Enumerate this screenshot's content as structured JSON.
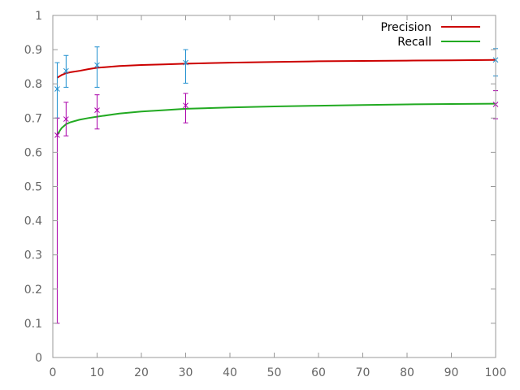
{
  "chart_data": {
    "type": "line",
    "title": "",
    "xlabel": "",
    "ylabel": "",
    "xlim": [
      0,
      100
    ],
    "ylim": [
      0,
      1
    ],
    "x_ticks": [
      "0",
      "10",
      "20",
      "30",
      "40",
      "50",
      "60",
      "70",
      "80",
      "90",
      "100"
    ],
    "y_ticks": [
      "0",
      "0.1",
      "0.2",
      "0.3",
      "0.4",
      "0.5",
      "0.6",
      "0.7",
      "0.8",
      "0.9",
      "1"
    ],
    "grid": false,
    "legend_position": "top-right",
    "series": [
      {
        "name": "Precision",
        "color": "#cc0000",
        "curve": [
          [
            1,
            0.818
          ],
          [
            2,
            0.826
          ],
          [
            3,
            0.831
          ],
          [
            4,
            0.834
          ],
          [
            6,
            0.838
          ],
          [
            8,
            0.843
          ],
          [
            10,
            0.847
          ],
          [
            15,
            0.852
          ],
          [
            20,
            0.855
          ],
          [
            25,
            0.857
          ],
          [
            30,
            0.859
          ],
          [
            40,
            0.862
          ],
          [
            50,
            0.864
          ],
          [
            60,
            0.866
          ],
          [
            70,
            0.867
          ],
          [
            80,
            0.868
          ],
          [
            90,
            0.869
          ],
          [
            100,
            0.87
          ]
        ],
        "points": [
          {
            "x": 1,
            "y": 0.785,
            "low": 0.7,
            "high": 0.862
          },
          {
            "x": 3,
            "y": 0.838,
            "low": 0.79,
            "high": 0.883
          },
          {
            "x": 10,
            "y": 0.855,
            "low": 0.79,
            "high": 0.908
          },
          {
            "x": 30,
            "y": 0.862,
            "low": 0.802,
            "high": 0.9
          },
          {
            "x": 100,
            "y": 0.87,
            "low": 0.823,
            "high": 0.903
          }
        ],
        "errorbar_color": "#1f8fcf"
      },
      {
        "name": "Recall",
        "color": "#22aa22",
        "curve": [
          [
            1,
            0.652
          ],
          [
            2,
            0.671
          ],
          [
            3,
            0.682
          ],
          [
            4,
            0.688
          ],
          [
            6,
            0.695
          ],
          [
            8,
            0.7
          ],
          [
            10,
            0.704
          ],
          [
            15,
            0.713
          ],
          [
            20,
            0.719
          ],
          [
            25,
            0.723
          ],
          [
            30,
            0.727
          ],
          [
            40,
            0.731
          ],
          [
            50,
            0.734
          ],
          [
            60,
            0.736
          ],
          [
            70,
            0.738
          ],
          [
            80,
            0.74
          ],
          [
            90,
            0.741
          ],
          [
            100,
            0.742
          ]
        ],
        "points": [
          {
            "x": 1,
            "y": 0.65,
            "low": 0.1,
            "high": 0.7
          },
          {
            "x": 3,
            "y": 0.697,
            "low": 0.648,
            "high": 0.746
          },
          {
            "x": 10,
            "y": 0.723,
            "low": 0.668,
            "high": 0.768
          },
          {
            "x": 30,
            "y": 0.737,
            "low": 0.686,
            "high": 0.772
          },
          {
            "x": 100,
            "y": 0.74,
            "low": 0.698,
            "high": 0.78
          }
        ],
        "errorbar_color": "#aa00aa"
      }
    ]
  }
}
